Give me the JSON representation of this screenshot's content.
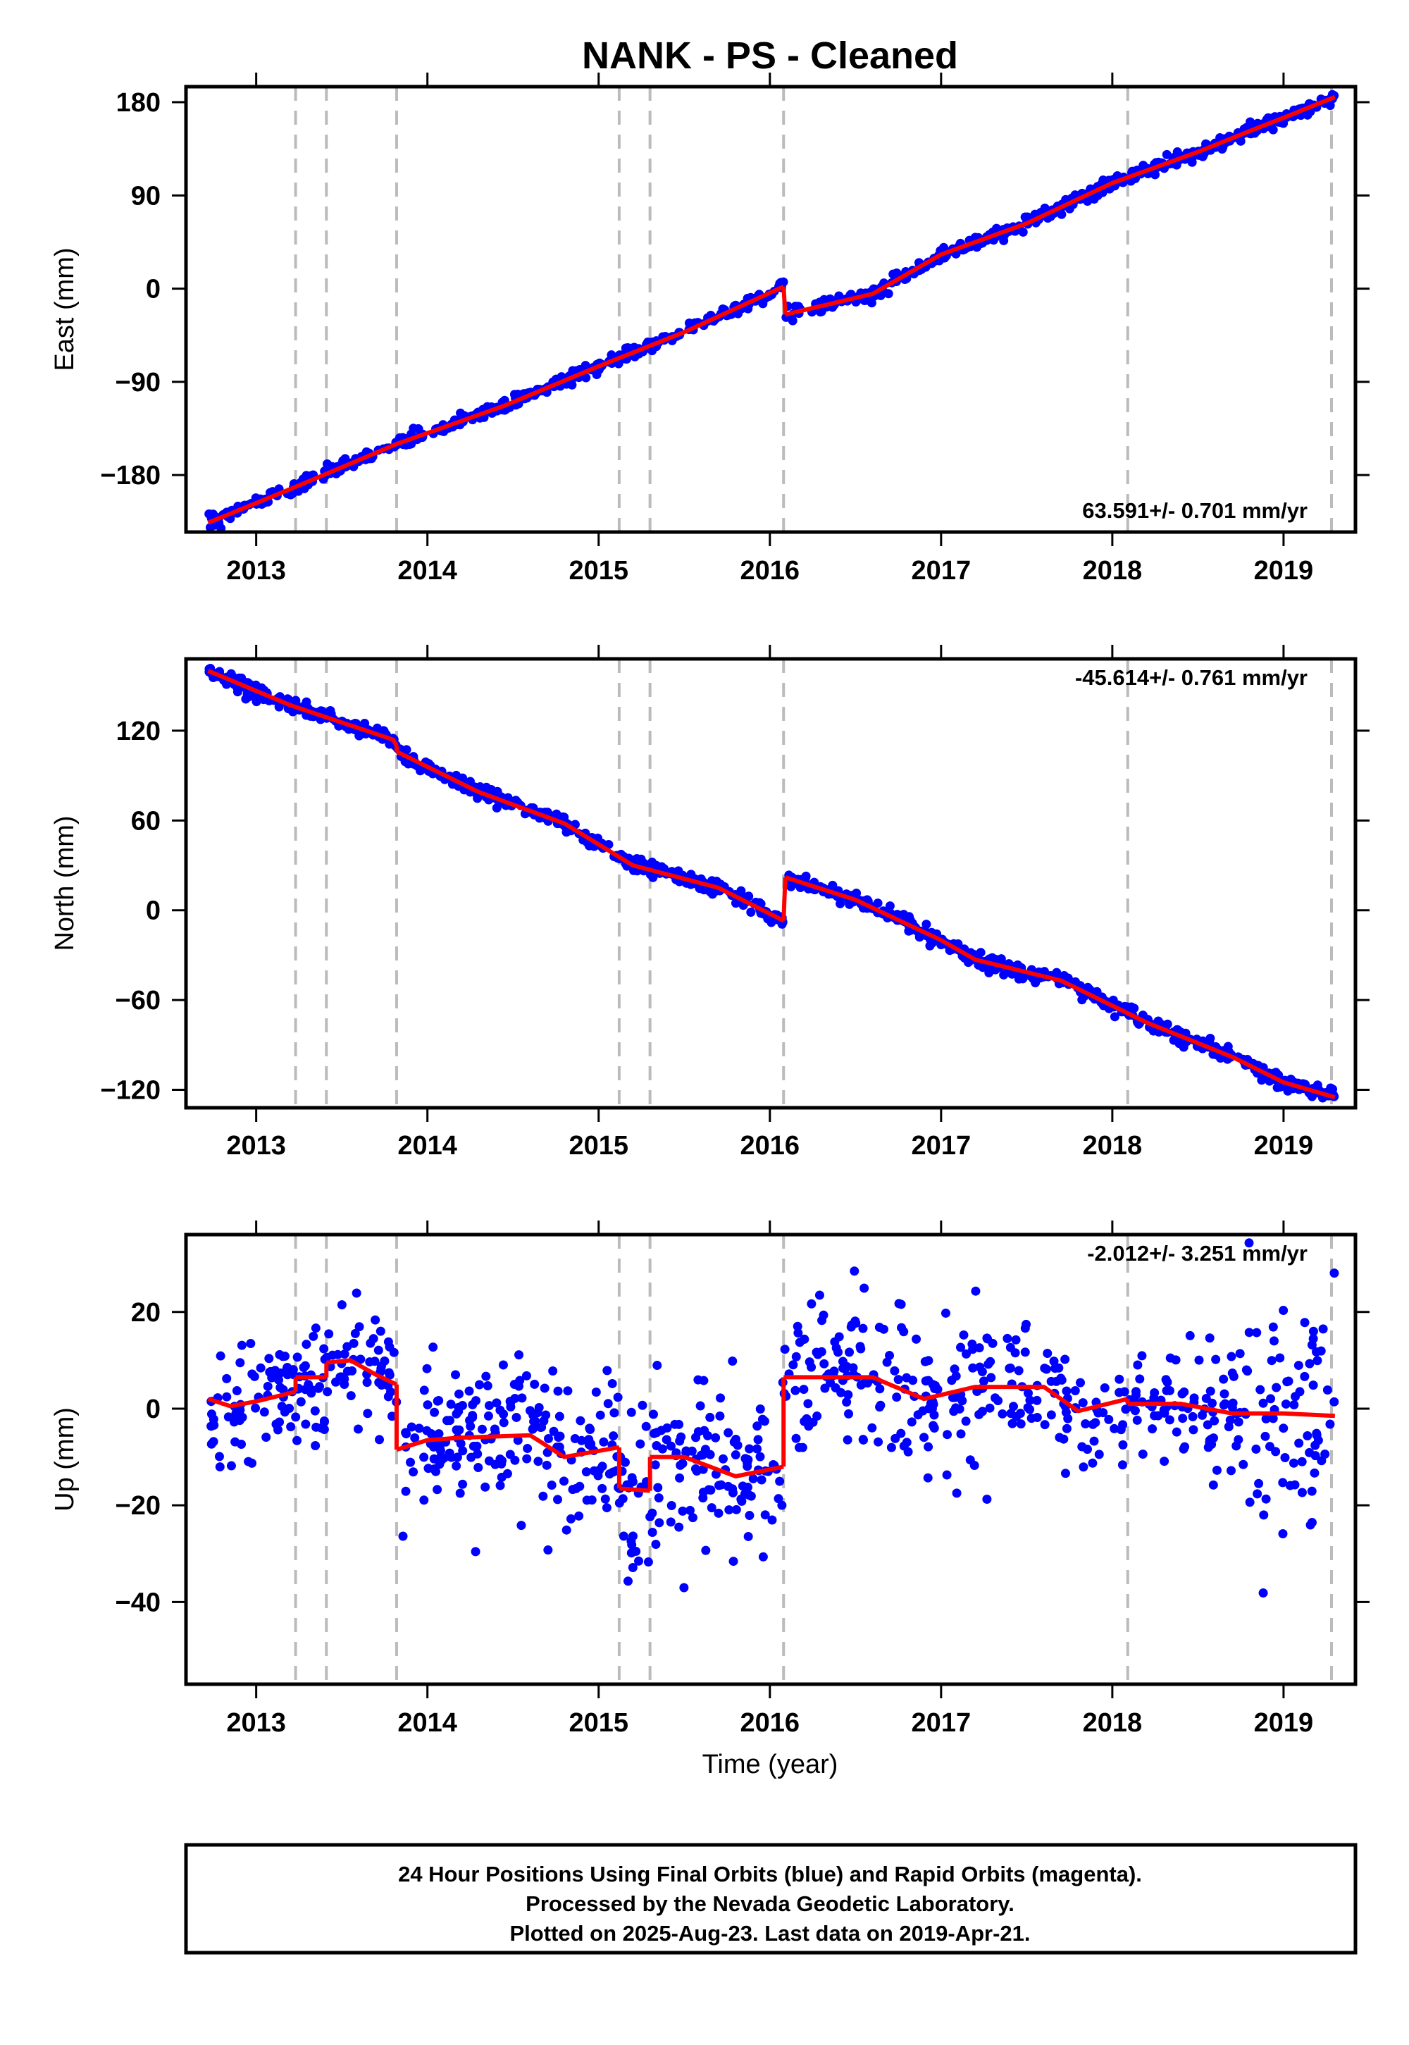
{
  "title": "NANK  - PS - Cleaned",
  "xlabel": "Time (year)",
  "x_tick_labels": [
    "2013",
    "2014",
    "2015",
    "2016",
    "2017",
    "2018",
    "2019"
  ],
  "colors": {
    "points": "#0000ff",
    "model": "#ff0000",
    "event_lines": "#bbbbbb",
    "frame": "#000000"
  },
  "footer": {
    "line1": "24 Hour Positions Using Final Orbits (blue) and Rapid Orbits (magenta).",
    "line2": "Processed by the Nevada Geodetic Laboratory.",
    "line3": "Plotted on 2025-Aug-23. Last data on 2019-Apr-21."
  },
  "chart_data": [
    {
      "type": "scatter",
      "component": "East",
      "ylabel": "East (mm)",
      "rate_text": "63.591+/- 0.701 mm/yr",
      "rate_position": "bottom-right",
      "xlim": [
        2012.59,
        2019.42
      ],
      "ylim": [
        -235,
        195
      ],
      "y_ticks": [
        180,
        90,
        0,
        -90,
        -180
      ],
      "y_tick_labels": [
        "180",
        "90",
        "0",
        "−90",
        "−180"
      ],
      "event_lines_x": [
        2013.23,
        2013.41,
        2013.82,
        2015.12,
        2015.3,
        2016.08,
        2018.09,
        2019.28
      ],
      "data_x_range": [
        2012.72,
        2019.3
      ],
      "point_scatter_mm": 3,
      "model_segments": [
        {
          "x": [
            2012.72,
            2013.25,
            2013.82,
            2014.45,
            2015.0,
            2015.5,
            2016.08
          ],
          "y": [
            -226,
            -190,
            -150,
            -113,
            -75,
            -42,
            2
          ]
        },
        {
          "x": [
            2016.09,
            2016.6,
            2017.0,
            2017.5,
            2018.0,
            2018.5,
            2018.8,
            2019.0,
            2019.3
          ],
          "y": [
            -25,
            -5,
            33,
            63,
            102,
            132,
            152,
            165,
            185
          ]
        }
      ],
      "grid": false
    },
    {
      "type": "scatter",
      "component": "North",
      "ylabel": "North (mm)",
      "rate_text": "-45.614+/- 0.761 mm/yr",
      "rate_position": "top-right",
      "xlim": [
        2012.59,
        2019.42
      ],
      "ylim": [
        -132,
        168
      ],
      "y_ticks": [
        120,
        60,
        0,
        -60,
        -120
      ],
      "y_tick_labels": [
        "120",
        "60",
        "0",
        "−60",
        "−120"
      ],
      "event_lines_x": [
        2013.23,
        2013.41,
        2013.82,
        2015.12,
        2015.3,
        2016.08,
        2018.09,
        2019.28
      ],
      "data_x_range": [
        2012.72,
        2019.3
      ],
      "point_scatter_mm": 2.5,
      "model_segments": [
        {
          "x": [
            2012.72,
            2013.2,
            2013.8,
            2013.82
          ],
          "y": [
            160,
            137,
            114,
            110
          ]
        },
        {
          "x": [
            2013.82,
            2014.3,
            2014.8,
            2015.2,
            2015.7,
            2016.08
          ],
          "y": [
            106,
            79,
            58,
            30,
            15,
            -7
          ]
        },
        {
          "x": [
            2016.09,
            2016.5,
            2017.0,
            2017.2,
            2017.7,
            2018.2,
            2018.7,
            2019.0,
            2019.3
          ],
          "y": [
            22,
            7,
            -20,
            -33,
            -47,
            -75,
            -98,
            -115,
            -125
          ]
        }
      ],
      "grid": false
    },
    {
      "type": "scatter",
      "component": "Up",
      "ylabel": "Up (mm)",
      "rate_text": "-2.012+/- 3.251 mm/yr",
      "rate_position": "top-right",
      "xlim": [
        2012.59,
        2019.42
      ],
      "ylim": [
        -57,
        36
      ],
      "y_ticks": [
        20,
        0,
        -20,
        -40
      ],
      "y_tick_labels": [
        "20",
        "0",
        "−20",
        "−40"
      ],
      "event_lines_x": [
        2013.23,
        2013.41,
        2013.82,
        2015.12,
        2015.3,
        2016.08,
        2018.09,
        2019.28
      ],
      "data_x_range": [
        2012.72,
        2019.3
      ],
      "point_scatter_mm": 7,
      "model_segments": [
        {
          "x": [
            2012.72,
            2012.85,
            2013.0,
            2013.23
          ],
          "y": [
            2,
            0.5,
            1.5,
            3.5
          ]
        },
        {
          "x": [
            2013.23,
            2013.41
          ],
          "y": [
            6.5,
            6.5
          ]
        },
        {
          "x": [
            2013.41,
            2013.55,
            2013.7,
            2013.82
          ],
          "y": [
            9.5,
            10,
            7,
            5
          ]
        },
        {
          "x": [
            2013.82,
            2014.0,
            2014.2,
            2014.6,
            2014.8,
            2015.12
          ],
          "y": [
            -8.5,
            -6.5,
            -6,
            -5.5,
            -10,
            -8
          ]
        },
        {
          "x": [
            2015.12,
            2015.3
          ],
          "y": [
            -16.5,
            -17
          ]
        },
        {
          "x": [
            2015.3,
            2015.5,
            2015.8,
            2016.08
          ],
          "y": [
            -10,
            -10,
            -14,
            -12
          ]
        },
        {
          "x": [
            2016.08,
            2016.3,
            2016.6,
            2016.9,
            2017.2,
            2017.6,
            2017.8,
            2018.09
          ],
          "y": [
            6.5,
            6.5,
            6.5,
            2,
            4.5,
            4.5,
            -0.5,
            2
          ]
        },
        {
          "x": [
            2018.09,
            2018.4,
            2018.7,
            2019.0,
            2019.3
          ],
          "y": [
            1,
            1,
            -1,
            -1,
            -1.5
          ]
        }
      ],
      "grid": false
    }
  ]
}
